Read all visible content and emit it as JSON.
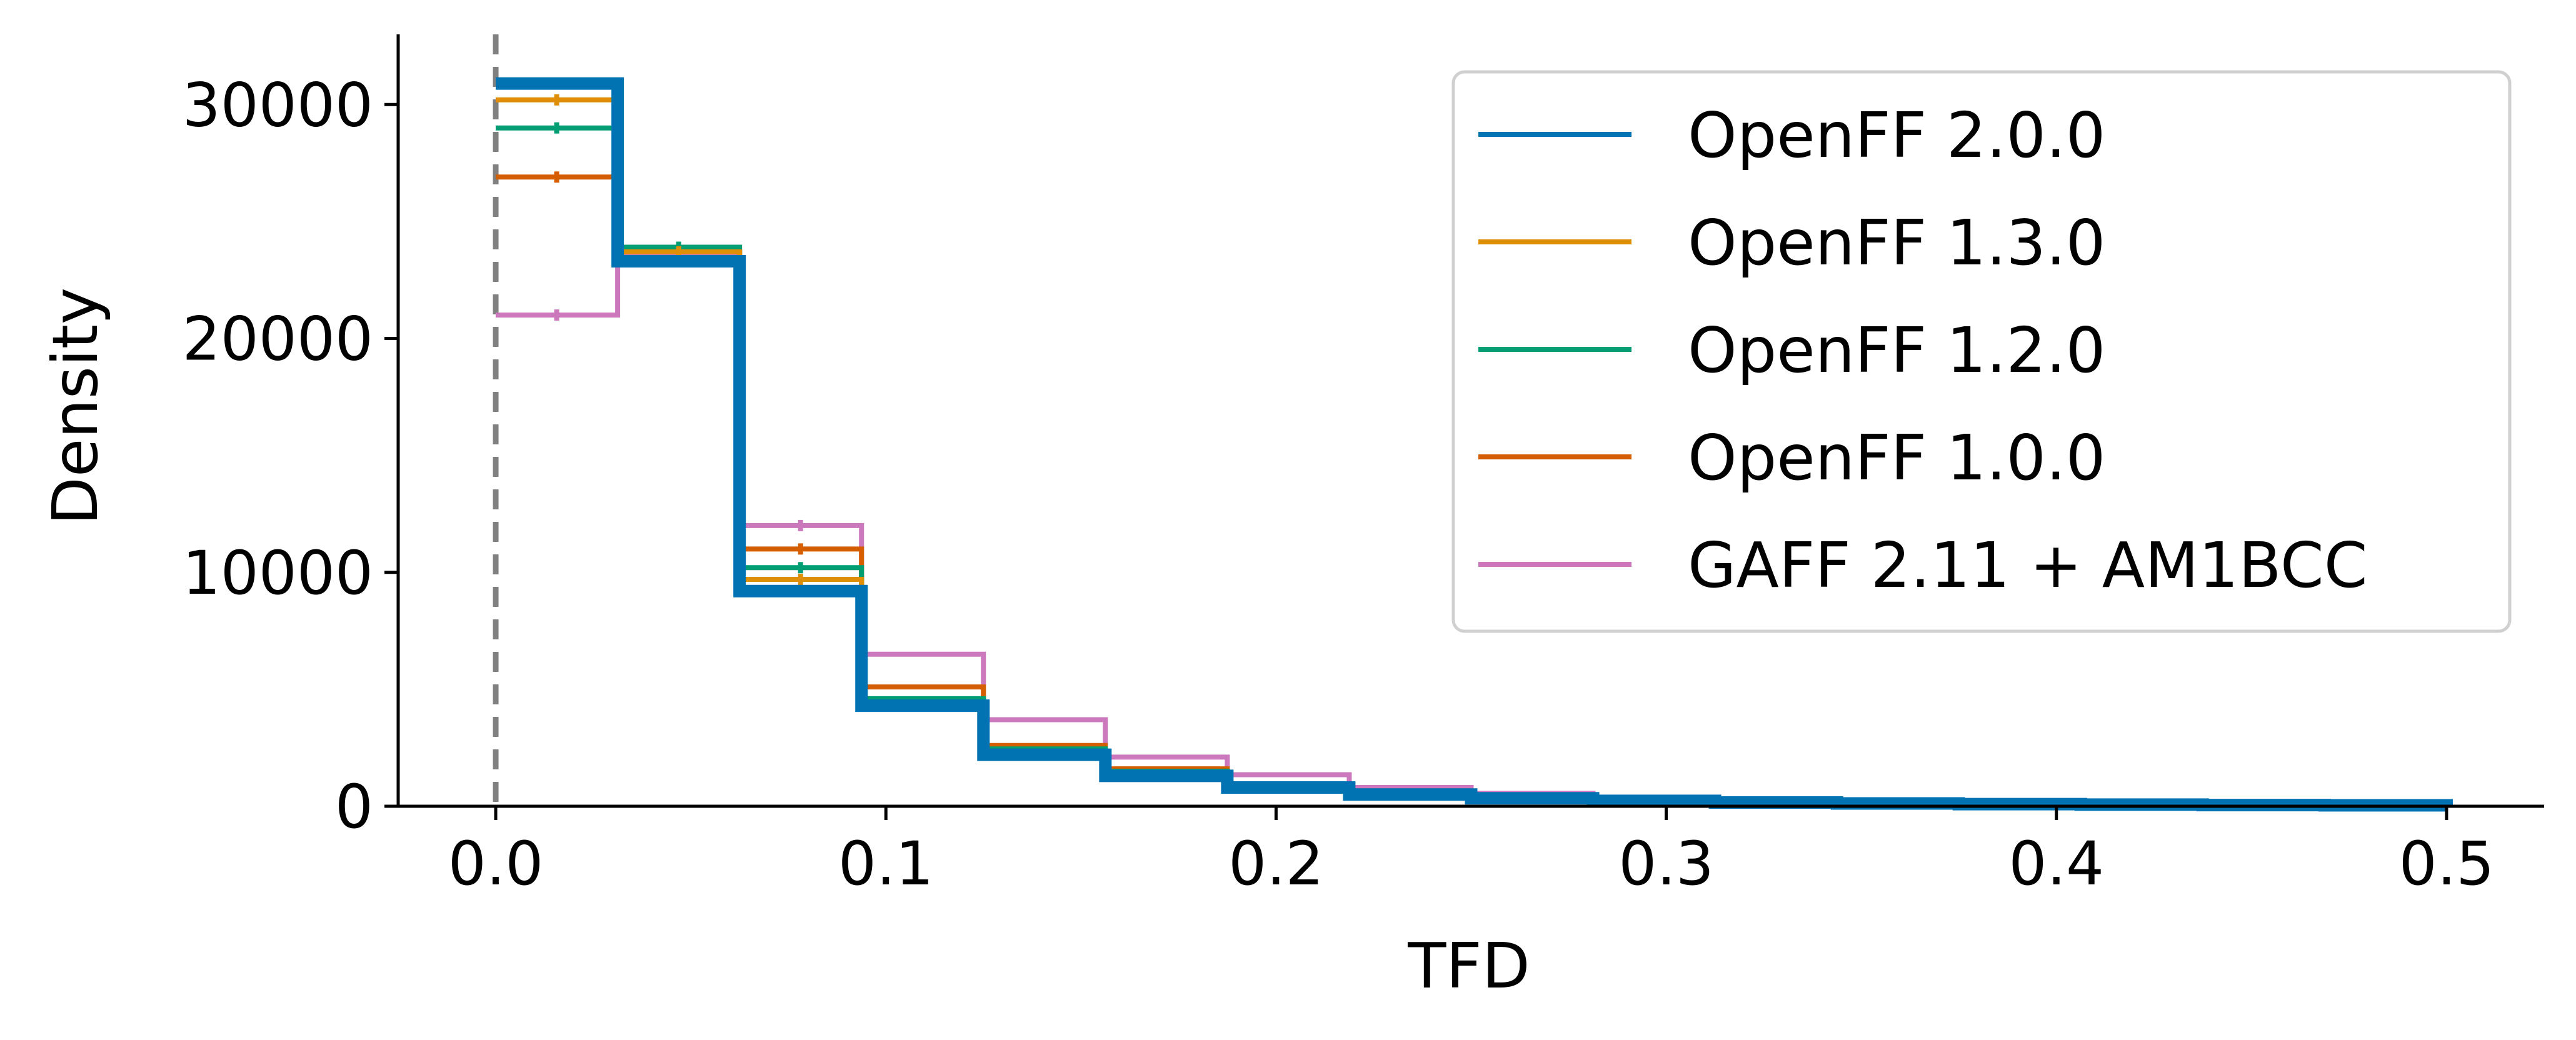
{
  "chart_data": {
    "type": "histogram-step",
    "title": "",
    "xlabel": "TFD",
    "ylabel": "Density",
    "xlim": [
      -0.025,
      0.525
    ],
    "ylim": [
      0,
      33000
    ],
    "xticks": [
      0.0,
      0.1,
      0.2,
      0.3,
      0.4,
      0.5
    ],
    "xtick_labels": [
      "0.0",
      "0.1",
      "0.2",
      "0.3",
      "0.4",
      "0.5"
    ],
    "yticks": [
      0,
      10000,
      20000,
      30000
    ],
    "ytick_labels": [
      "0",
      "10000",
      "20000",
      "30000"
    ],
    "reference_line": {
      "x": 0.0,
      "style": "dashed",
      "color": "#808080"
    },
    "bin_edges": [
      0,
      0.03125,
      0.0625,
      0.09375,
      0.125,
      0.15625,
      0.1875,
      0.21875,
      0.25,
      0.28125,
      0.3125,
      0.34375,
      0.375,
      0.40625,
      0.4375,
      0.46875,
      0.5
    ],
    "legend_position": "top-right",
    "series": [
      {
        "name": "GAFF 2.11 + AM1BCC",
        "color": "#cc78bc",
        "width": 8,
        "values": [
          21000,
          23600,
          12000,
          6500,
          3700,
          2100,
          1350,
          800,
          550,
          350,
          250,
          180,
          130,
          100,
          80,
          60
        ]
      },
      {
        "name": "OpenFF 1.0.0",
        "color": "#d55e00",
        "width": 8,
        "values": [
          26900,
          23700,
          11000,
          5100,
          2600,
          1600,
          950,
          600,
          400,
          270,
          190,
          140,
          100,
          80,
          60,
          50
        ]
      },
      {
        "name": "OpenFF 1.2.0",
        "color": "#029e73",
        "width": 8,
        "values": [
          29000,
          23900,
          10200,
          4600,
          2450,
          1500,
          900,
          560,
          370,
          250,
          180,
          130,
          95,
          75,
          55,
          45
        ]
      },
      {
        "name": "OpenFF 1.3.0",
        "color": "#de8f05",
        "width": 8,
        "values": [
          30200,
          23700,
          9700,
          4400,
          2350,
          1450,
          870,
          540,
          360,
          240,
          170,
          125,
          90,
          70,
          55,
          45
        ]
      },
      {
        "name": "OpenFF 2.0.0",
        "color": "#0173b2",
        "width": 20,
        "values": [
          30900,
          23300,
          9200,
          4300,
          2200,
          1300,
          800,
          500,
          340,
          230,
          160,
          120,
          90,
          70,
          50,
          40
        ]
      }
    ],
    "legend_order": [
      "OpenFF 2.0.0",
      "OpenFF 1.3.0",
      "OpenFF 1.2.0",
      "OpenFF 1.0.0",
      "GAFF 2.11 + AM1BCC"
    ]
  }
}
